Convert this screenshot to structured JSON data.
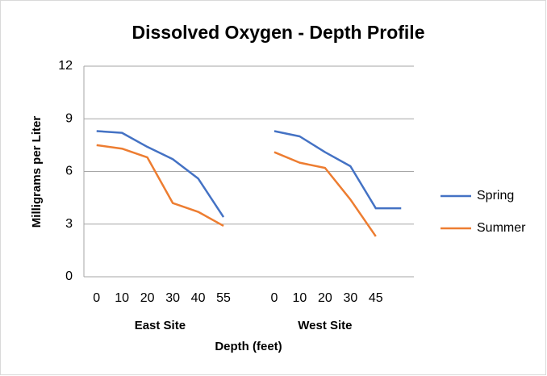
{
  "chart_data": {
    "type": "line",
    "title": "Dissolved Oxygen - Depth Profile",
    "categories": [
      "0",
      "10",
      "20",
      "30",
      "40",
      "55",
      null,
      "0",
      "10",
      "20",
      "30",
      "45",
      null
    ],
    "groups": [
      "East Site",
      "West Site"
    ],
    "series": [
      {
        "name": "Spring",
        "color": "#4472c4",
        "values": [
          8.3,
          8.2,
          7.4,
          6.7,
          5.6,
          3.4,
          null,
          8.3,
          8.0,
          7.1,
          6.3,
          3.9,
          3.9
        ]
      },
      {
        "name": "Summer",
        "color": "#ed7d31",
        "values": [
          7.5,
          7.3,
          6.8,
          4.2,
          3.7,
          2.9,
          null,
          7.1,
          6.5,
          6.2,
          4.4,
          2.3,
          null
        ]
      }
    ],
    "ylim": [
      0,
      12
    ],
    "yticks": [
      0,
      3,
      6,
      9,
      12
    ],
    "grid": true,
    "y_label": "Milligrams per Liter",
    "x_label": "Depth (feet)",
    "legend": "right"
  }
}
